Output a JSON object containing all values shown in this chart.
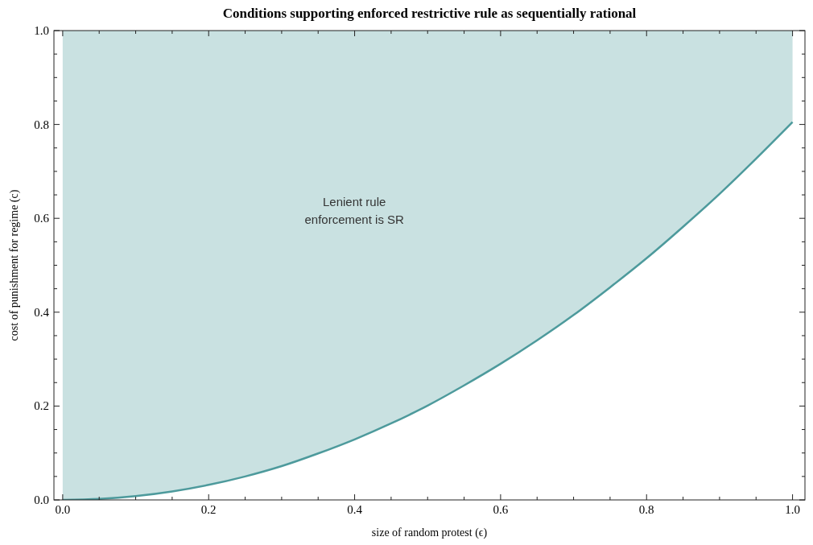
{
  "chart_data": {
    "type": "line",
    "title": "Conditions supporting enforced restrictive rule as sequentially rational",
    "xlabel": "size of random protest (ϵ)",
    "ylabel": "cost of punishment for regime (c)",
    "x": [
      0,
      0.05,
      0.1,
      0.15,
      0.2,
      0.25,
      0.3,
      0.35,
      0.4,
      0.45,
      0.5,
      0.55,
      0.6,
      0.65,
      0.7,
      0.75,
      0.8,
      0.85,
      0.9,
      0.95,
      1
    ],
    "series": [
      {
        "color": "#4d9a9c",
        "values": [
          0,
          0.002,
          0.008,
          0.018,
          0.032,
          0.05,
          0.072,
          0.099,
          0.129,
          0.163,
          0.201,
          0.244,
          0.29,
          0.34,
          0.394,
          0.453,
          0.515,
          0.582,
          0.652,
          0.727,
          0.805
        ],
        "lower": [
          0,
          0.002,
          0.008,
          0.018,
          0.032,
          0.05,
          0.072,
          0.099,
          0.129,
          0.163,
          0.201,
          0.244,
          0.29,
          0.34,
          0.394,
          0.453,
          0.515,
          0.582,
          0.652,
          0.727,
          0.805
        ],
        "upper": [
          1,
          1,
          1,
          1,
          1,
          1,
          1,
          1,
          1,
          1,
          1,
          1,
          1,
          1,
          1,
          1,
          1,
          1,
          1,
          1,
          1
        ]
      }
    ],
    "xlim": [
      -0.012,
      1.017
    ],
    "ylim": [
      0,
      1
    ],
    "xticks": [
      {
        "value": 0,
        "label": "0.0"
      },
      {
        "value": 0.05,
        "label": null
      },
      {
        "value": 0.1,
        "label": null
      },
      {
        "value": 0.15,
        "label": null
      },
      {
        "value": 0.2,
        "label": "0.2"
      },
      {
        "value": 0.25,
        "label": null
      },
      {
        "value": 0.3,
        "label": null
      },
      {
        "value": 0.35,
        "label": null
      },
      {
        "value": 0.4,
        "label": "0.4"
      },
      {
        "value": 0.45,
        "label": null
      },
      {
        "value": 0.5,
        "label": null
      },
      {
        "value": 0.55,
        "label": null
      },
      {
        "value": 0.6,
        "label": "0.6"
      },
      {
        "value": 0.65,
        "label": null
      },
      {
        "value": 0.7,
        "label": null
      },
      {
        "value": 0.75,
        "label": null
      },
      {
        "value": 0.8,
        "label": "0.8"
      },
      {
        "value": 0.85,
        "label": null
      },
      {
        "value": 0.9,
        "label": null
      },
      {
        "value": 0.95,
        "label": null
      },
      {
        "value": 1,
        "label": "1.0"
      }
    ],
    "yticks": [
      {
        "value": 0,
        "label": "0.0"
      },
      {
        "value": 0.05,
        "label": null
      },
      {
        "value": 0.1,
        "label": null
      },
      {
        "value": 0.15,
        "label": null
      },
      {
        "value": 0.2,
        "label": "0.2"
      },
      {
        "value": 0.25,
        "label": null
      },
      {
        "value": 0.3,
        "label": null
      },
      {
        "value": 0.35,
        "label": null
      },
      {
        "value": 0.4,
        "label": "0.4"
      },
      {
        "value": 0.45,
        "label": null
      },
      {
        "value": 0.5,
        "label": null
      },
      {
        "value": 0.55,
        "label": null
      },
      {
        "value": 0.6,
        "label": "0.6"
      },
      {
        "value": 0.65,
        "label": null
      },
      {
        "value": 0.7,
        "label": null
      },
      {
        "value": 0.75,
        "label": null
      },
      {
        "value": 0.8,
        "label": "0.8"
      },
      {
        "value": 0.85,
        "label": null
      },
      {
        "value": 0.9,
        "label": null
      },
      {
        "value": 0.95,
        "label": null
      },
      {
        "value": 1,
        "label": "1.0"
      }
    ],
    "annotations": [
      "Lenient rule\nenforcement is SR"
    ]
  }
}
